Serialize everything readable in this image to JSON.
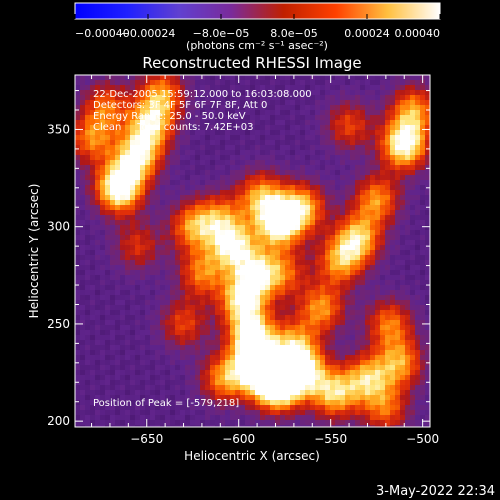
{
  "chart_data": {
    "type": "heatmap",
    "title": "Reconstructed RHESSI Image",
    "xlabel": "Heliocentric X (arcsec)",
    "ylabel": "Heliocentric Y (arcsec)",
    "xlim": [
      -689,
      -496
    ],
    "ylim": [
      197,
      378
    ],
    "x_ticks": [
      -650,
      -600,
      -550,
      -500
    ],
    "x_tick_labels": [
      "−650",
      "−600",
      "−550",
      "−500"
    ],
    "y_ticks": [
      200,
      250,
      300,
      350
    ],
    "y_tick_labels": [
      "200",
      "250",
      "300",
      "350"
    ],
    "colorbar": {
      "range": [
        -0.0004,
        0.0004
      ],
      "ticks": [
        -0.0004,
        -0.00024,
        -8e-05,
        8e-05,
        0.00024,
        0.0004
      ],
      "tick_labels": [
        "−0.00040",
        "−0.00024",
        "−8.0e−05",
        "8.0e−05",
        "0.00024",
        "0.00040"
      ],
      "unit_label": "(photons cm⁻² s⁻¹ asec⁻²)",
      "colors": [
        "#0000ff",
        "#2020ff",
        "#6040d0",
        "#7a2a9a",
        "#c02000",
        "#ff4000",
        "#ffc040",
        "#ffffff"
      ]
    },
    "annotations": [
      "22-Dec-2005 15:59:12.000 to 16:03:08.000",
      "Detectors: 3F 4F 5F 6F 7F 8F, Att 0",
      "Energy Range: 25.0 - 50.0 keV",
      "Clean     Total counts: 7.42E+03"
    ],
    "peak_label": "Position of Peak = [-579,218]",
    "peak": [
      -579,
      218
    ],
    "sources": [
      {
        "x": -579,
        "y": 218,
        "intensity": 1.0
      },
      {
        "x": -590,
        "y": 228,
        "intensity": 0.85
      },
      {
        "x": -565,
        "y": 226,
        "intensity": 0.75
      },
      {
        "x": -548,
        "y": 214,
        "intensity": 0.65
      },
      {
        "x": -608,
        "y": 222,
        "intensity": 0.55
      },
      {
        "x": -593,
        "y": 244,
        "intensity": 0.75
      },
      {
        "x": -598,
        "y": 262,
        "intensity": 0.7
      },
      {
        "x": -590,
        "y": 276,
        "intensity": 0.6
      },
      {
        "x": -603,
        "y": 290,
        "intensity": 0.7
      },
      {
        "x": -578,
        "y": 302,
        "intensity": 0.85
      },
      {
        "x": -565,
        "y": 310,
        "intensity": 0.6
      },
      {
        "x": -588,
        "y": 316,
        "intensity": 0.55
      },
      {
        "x": -620,
        "y": 276,
        "intensity": 0.5
      },
      {
        "x": -625,
        "y": 300,
        "intensity": 0.55
      },
      {
        "x": -610,
        "y": 305,
        "intensity": 0.45
      },
      {
        "x": -665,
        "y": 320,
        "intensity": 0.95
      },
      {
        "x": -655,
        "y": 336,
        "intensity": 0.7
      },
      {
        "x": -648,
        "y": 352,
        "intensity": 0.65
      },
      {
        "x": -642,
        "y": 368,
        "intensity": 0.55
      },
      {
        "x": -680,
        "y": 345,
        "intensity": 0.5
      },
      {
        "x": -672,
        "y": 362,
        "intensity": 0.45
      },
      {
        "x": -555,
        "y": 258,
        "intensity": 0.55
      },
      {
        "x": -545,
        "y": 282,
        "intensity": 0.55
      },
      {
        "x": -535,
        "y": 294,
        "intensity": 0.65
      },
      {
        "x": -525,
        "y": 314,
        "intensity": 0.55
      },
      {
        "x": -510,
        "y": 342,
        "intensity": 0.85
      },
      {
        "x": -505,
        "y": 360,
        "intensity": 0.55
      },
      {
        "x": -518,
        "y": 250,
        "intensity": 0.5
      },
      {
        "x": -512,
        "y": 230,
        "intensity": 0.55
      },
      {
        "x": -530,
        "y": 222,
        "intensity": 0.6
      },
      {
        "x": -570,
        "y": 240,
        "intensity": 0.5
      },
      {
        "x": -630,
        "y": 250,
        "intensity": 0.4
      },
      {
        "x": -655,
        "y": 290,
        "intensity": 0.35
      },
      {
        "x": -540,
        "y": 352,
        "intensity": 0.4
      },
      {
        "x": -520,
        "y": 206,
        "intensity": 0.45
      },
      {
        "x": -575,
        "y": 276,
        "intensity": 0.4
      }
    ]
  },
  "timestamp": "3-May-2022 22:34"
}
